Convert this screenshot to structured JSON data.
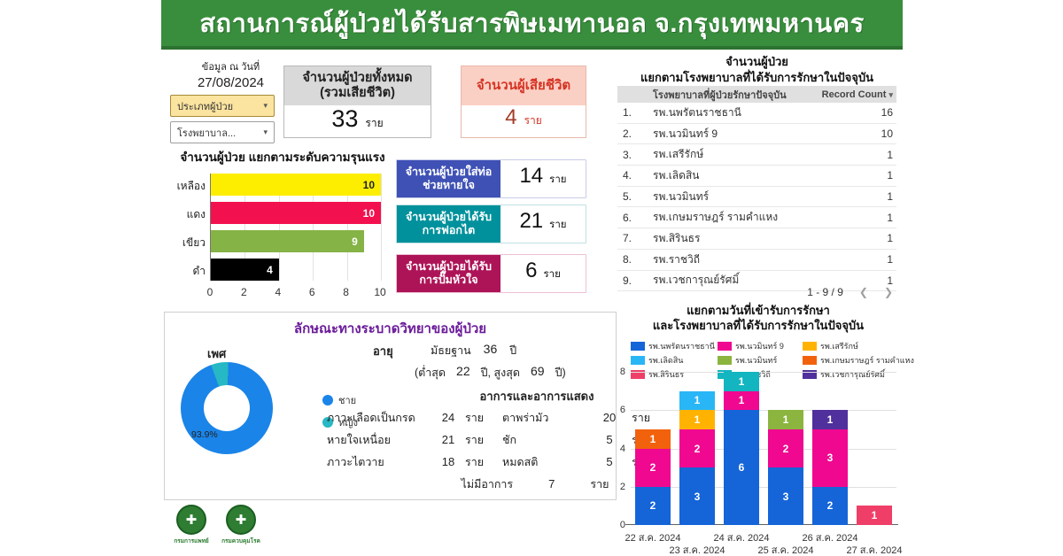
{
  "header": {
    "title": "สถานการณ์ผู้ป่วยได้รับสารพิษเมทานอล จ.กรุงเทพมหานคร"
  },
  "filters": {
    "date_label": "ข้อมูล ณ วันที่",
    "date_value": "27/08/2024",
    "patient_type_dropdown": "ประเภทผู้ป่วย",
    "hospital_dropdown": "โรงพยาบาล..."
  },
  "icons": {
    "caret_down": "▾",
    "chevron_left": "❮",
    "chevron_right": "❯",
    "medical": "✚"
  },
  "stat_cards": {
    "total": {
      "label": "จำนวนผู้ป่วยทั้งหมด (รวมเสียชีวิต)",
      "value": "33",
      "unit": "ราย"
    },
    "deaths": {
      "label": "จำนวนผู้เสียชีวิต",
      "value": "4",
      "unit": "ราย"
    },
    "intubated": {
      "label": "จำนวนผู้ป่วยใส่ท่อช่วยหายใจ",
      "value": "14",
      "unit": "ราย",
      "color": "#3f51b5",
      "border": "#c9cde8"
    },
    "dialysis": {
      "label": "จำนวนผู้ป่วยได้รับการฟอกไต",
      "value": "21",
      "unit": "ราย",
      "color": "#00919c",
      "border": "#bfe0e2"
    },
    "cpr": {
      "label": "จำนวนผู้ป่วยได้รับการปั๊มหัวใจ",
      "value": "6",
      "unit": "ราย",
      "color": "#ad1457",
      "border": "#ecc1d4"
    }
  },
  "hospital_table": {
    "title_line1": "จำนวนผู้ป่วย",
    "title_line2": "แยกตามโรงพยาบาลที่ได้รับการรักษาในปัจจุบัน",
    "col_hospital": "โรงพยาบาลที่ผู้ป่วยรักษาปัจจุบัน",
    "col_count": "Record Count",
    "rows": [
      {
        "name": "รพ.นพรัตนราชธานี",
        "count": "16"
      },
      {
        "name": "รพ.นวมินทร์ 9",
        "count": "10"
      },
      {
        "name": "รพ.เสรีรักษ์",
        "count": "1"
      },
      {
        "name": "รพ.เลิดสิน",
        "count": "1"
      },
      {
        "name": "รพ.นวมินทร์",
        "count": "1"
      },
      {
        "name": "รพ.เกษมราษฎร์ รามคำแหง",
        "count": "1"
      },
      {
        "name": "รพ.สิรินธร",
        "count": "1"
      },
      {
        "name": "รพ.ราชวิถี",
        "count": "1"
      },
      {
        "name": "รพ.เวชการุณย์รัศมิ์",
        "count": "1"
      }
    ],
    "pagination": "1 - 9 / 9"
  },
  "epidemiology": {
    "title": "ลักษณะทางระบาดวิทยาของผู้ป่วย",
    "sex_label": "เพศ",
    "age_label": "อายุ",
    "age_median_label": "มัธยฐาน",
    "age_median": "36",
    "age_median_unit": "ปี",
    "age_range_prefix": "(ต่ำสุด",
    "age_min": "22",
    "age_range_mid": "ปี, สูงสุด",
    "age_max": "69",
    "age_range_suffix": "ปี)",
    "symptoms_title": "อาการและอาการแสดง",
    "unit": "ราย",
    "symptoms": [
      {
        "name": "ภาวะเลือดเป็นกรด",
        "value": "24"
      },
      {
        "name": "ตาพร่ามัว",
        "value": "20"
      },
      {
        "name": "หายใจเหนื่อย",
        "value": "21"
      },
      {
        "name": "ชัก",
        "value": "5"
      },
      {
        "name": "ภาวะไตวาย",
        "value": "18"
      },
      {
        "name": "หมดสติ",
        "value": "5"
      },
      {
        "name": "ไม่มีอาการ",
        "value": "7"
      }
    ]
  },
  "logos": [
    {
      "text": "กรมการแพทย์"
    },
    {
      "text": "กรมควบคุมโรค"
    }
  ],
  "chart_data": [
    {
      "id": "severity",
      "type": "bar",
      "orientation": "horizontal",
      "title": "จำนวนผู้ป่วย แยกตามระดับความรุนแรง",
      "categories": [
        "เหลือง",
        "แดง",
        "เขียว",
        "ดำ"
      ],
      "values": [
        10,
        10,
        9,
        4
      ],
      "colors": [
        "#fdee00",
        "#f3104e",
        "#85b345",
        "#000000"
      ],
      "label_colors": [
        "#222222",
        "#ffffff",
        "#ffffff",
        "#ffffff"
      ],
      "xlim": [
        0,
        10
      ],
      "xticks": [
        0,
        2,
        4,
        6,
        8,
        10
      ],
      "grid": true
    },
    {
      "id": "gender",
      "type": "pie",
      "title": "เพศ",
      "slices": [
        {
          "label": "ชาย",
          "value": 93.9,
          "color": "#1a84e8"
        },
        {
          "label": "หญิง",
          "value": 6.1,
          "color": "#26b8c4"
        }
      ],
      "annotation": "93.9%",
      "legend_position": "right"
    },
    {
      "id": "admissions",
      "type": "stacked-bar",
      "title_line1": "แยกตามวันที่เข้ารับการรักษา",
      "title_line2": "และโรงพยาบาลที่ได้รับการรักษาในปัจจุบัน",
      "categories": [
        "22 ส.ค. 2024",
        "23 ส.ค. 2024",
        "24 ส.ค. 2024",
        "25 ส.ค. 2024",
        "26 ส.ค. 2024",
        "27 ส.ค. 2024"
      ],
      "series": [
        {
          "name": "รพ.นพรัตนราชธานี",
          "color": "#1565d8",
          "values": [
            2,
            3,
            6,
            3,
            2,
            0
          ]
        },
        {
          "name": "รพ.นวมินทร์ 9",
          "color": "#f00890",
          "values": [
            2,
            2,
            1,
            2,
            3,
            0
          ]
        },
        {
          "name": "รพ.เสรีรักษ์",
          "color": "#ffb300",
          "values": [
            0,
            1,
            0,
            0,
            0,
            0
          ]
        },
        {
          "name": "รพ.เลิดสิน",
          "color": "#29b6f6",
          "values": [
            0,
            1,
            0,
            0,
            0,
            0
          ]
        },
        {
          "name": "รพ.นวมินทร์",
          "color": "#8bb53f",
          "values": [
            0,
            0,
            0,
            1,
            0,
            0
          ]
        },
        {
          "name": "รพ.เกษมราษฎร์ รามคำแหง",
          "color": "#f2620c",
          "values": [
            1,
            0,
            0,
            0,
            0,
            0
          ]
        },
        {
          "name": "รพ.สิรินธร",
          "color": "#ef3f68",
          "values": [
            0,
            0,
            0,
            0,
            0,
            1
          ]
        },
        {
          "name": "รพ.ราชวิถี",
          "color": "#12b5c0",
          "values": [
            0,
            0,
            1,
            0,
            0,
            0
          ]
        },
        {
          "name": "รพ.เวชการุณย์รัศมิ์",
          "color": "#50309c",
          "values": [
            0,
            0,
            0,
            0,
            1,
            0
          ]
        }
      ],
      "ylim": [
        0,
        8
      ],
      "yticks": [
        0,
        2,
        4,
        6,
        8
      ],
      "grid": true,
      "legend_position": "top"
    }
  ]
}
